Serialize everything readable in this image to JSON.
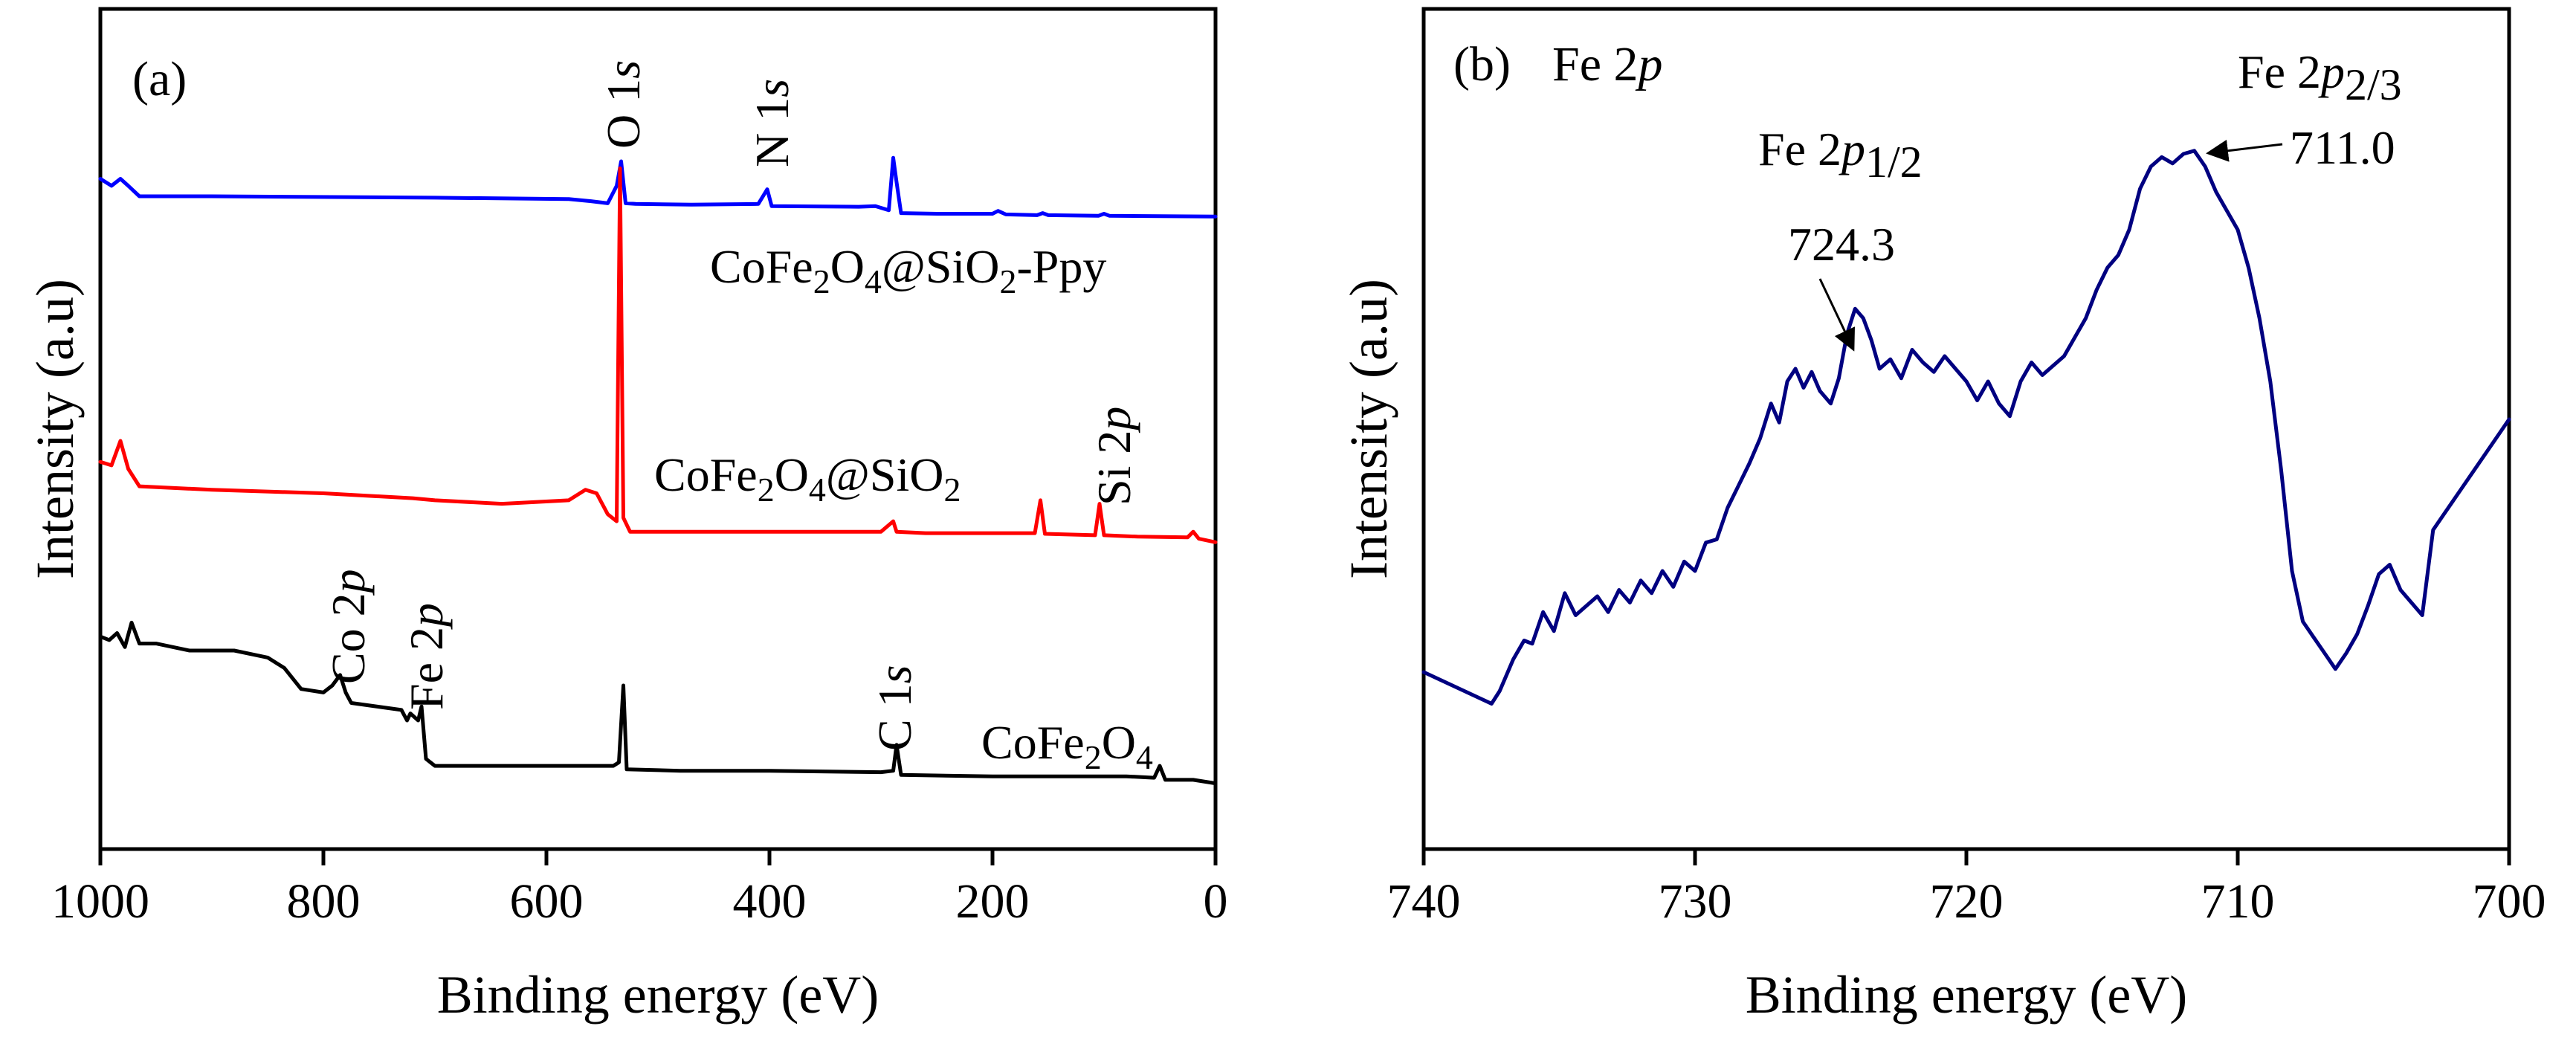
{
  "chart_data": [
    {
      "type": "line",
      "panel": "(a)",
      "title": "",
      "xlabel": "Binding energy (eV)",
      "ylabel": "Intensity (a.u)",
      "xlim": [
        1000,
        0
      ],
      "xticks": [
        1000,
        800,
        600,
        400,
        200,
        0
      ],
      "y_ticks_labeled": false,
      "y_axis_note": "stacked spectra, arbitrary units 0-100",
      "series": [
        {
          "name": "CoFe2O4@SiO2-Ppy",
          "color": "#0000ff",
          "points": [
            [
              1000,
              92.5
            ],
            [
              990,
              91.5
            ],
            [
              982,
              92.5
            ],
            [
              975,
              91.5
            ],
            [
              965,
              90.0
            ],
            [
              900,
              90.0
            ],
            [
              700,
              89.8
            ],
            [
              580,
              89.6
            ],
            [
              560,
              89.3
            ],
            [
              545,
              89.0
            ],
            [
              537,
              91.5
            ],
            [
              533,
              95.0
            ],
            [
              529,
              89.0
            ],
            [
              520,
              88.9
            ],
            [
              470,
              88.8
            ],
            [
              410,
              88.9
            ],
            [
              402,
              91.0
            ],
            [
              398,
              88.6
            ],
            [
              320,
              88.5
            ],
            [
              305,
              88.6
            ],
            [
              293,
              88.0
            ],
            [
              289,
              95.5
            ],
            [
              286,
              92.0
            ],
            [
              282,
              87.6
            ],
            [
              250,
              87.5
            ],
            [
              200,
              87.5
            ],
            [
              195,
              87.9
            ],
            [
              188,
              87.4
            ],
            [
              160,
              87.3
            ],
            [
              155,
              87.6
            ],
            [
              150,
              87.3
            ],
            [
              105,
              87.2
            ],
            [
              100,
              87.5
            ],
            [
              95,
              87.2
            ],
            [
              0,
              87.1
            ]
          ]
        },
        {
          "name": "CoFe2O4@SiO2",
          "color": "#ff0000",
          "points": [
            [
              1000,
              52.0
            ],
            [
              990,
              51.5
            ],
            [
              982,
              55.0
            ],
            [
              975,
              51.0
            ],
            [
              965,
              48.5
            ],
            [
              900,
              48.0
            ],
            [
              800,
              47.5
            ],
            [
              720,
              46.8
            ],
            [
              700,
              46.5
            ],
            [
              640,
              46.0
            ],
            [
              580,
              46.5
            ],
            [
              565,
              48.0
            ],
            [
              555,
              47.5
            ],
            [
              545,
              44.5
            ],
            [
              537,
              43.5
            ],
            [
              534,
              94.0
            ],
            [
              531,
              44.0
            ],
            [
              525,
              42.0
            ],
            [
              480,
              42.0
            ],
            [
              400,
              42.0
            ],
            [
              300,
              42.0
            ],
            [
              289,
              43.5
            ],
            [
              286,
              42.0
            ],
            [
              260,
              41.8
            ],
            [
              200,
              41.8
            ],
            [
              162,
              41.8
            ],
            [
              157,
              46.5
            ],
            [
              153,
              41.7
            ],
            [
              108,
              41.5
            ],
            [
              104,
              46.0
            ],
            [
              100,
              41.5
            ],
            [
              70,
              41.3
            ],
            [
              25,
              41.2
            ],
            [
              20,
              42.0
            ],
            [
              15,
              41.0
            ],
            [
              0,
              40.5
            ]
          ]
        },
        {
          "name": "CoFe2O4",
          "color": "#000000",
          "points": [
            [
              1000,
              27.0
            ],
            [
              992,
              26.5
            ],
            [
              985,
              27.5
            ],
            [
              978,
              25.5
            ],
            [
              972,
              29.0
            ],
            [
              965,
              26.0
            ],
            [
              950,
              26.0
            ],
            [
              920,
              25.0
            ],
            [
              880,
              25.0
            ],
            [
              850,
              24.0
            ],
            [
              835,
              22.5
            ],
            [
              820,
              19.5
            ],
            [
              800,
              19.0
            ],
            [
              792,
              20.0
            ],
            [
              785,
              21.5
            ],
            [
              780,
              19.0
            ],
            [
              775,
              17.5
            ],
            [
              730,
              16.5
            ],
            [
              725,
              15.0
            ],
            [
              722,
              16.0
            ],
            [
              715,
              15.0
            ],
            [
              712,
              17.0
            ],
            [
              708,
              9.5
            ],
            [
              700,
              8.5
            ],
            [
              560,
              8.5
            ],
            [
              540,
              8.5
            ],
            [
              535,
              9.0
            ],
            [
              531,
              20.0
            ],
            [
              528,
              8.0
            ],
            [
              480,
              7.8
            ],
            [
              400,
              7.8
            ],
            [
              300,
              7.6
            ],
            [
              289,
              7.8
            ],
            [
              286,
              11.5
            ],
            [
              282,
              7.2
            ],
            [
              200,
              7.0
            ],
            [
              80,
              7.0
            ],
            [
              55,
              6.8
            ],
            [
              50,
              8.5
            ],
            [
              45,
              6.5
            ],
            [
              20,
              6.5
            ],
            [
              0,
              6.0
            ]
          ]
        }
      ],
      "annotations": [
        {
          "label": "O 1s",
          "x": 533
        },
        {
          "label": "N 1s",
          "x": 400
        },
        {
          "label": "Si 2p",
          "x": 104
        },
        {
          "label": "Co 2p",
          "x": 780
        },
        {
          "label": "Fe 2p",
          "x": 711
        },
        {
          "label": "C 1s",
          "x": 285
        }
      ],
      "series_labels": {
        "ppy": {
          "prefix": "CoFe",
          "s1": "2",
          "mid": "O",
          "s2": "4",
          "tail": "@SiO",
          "s3": "2",
          "end": "-Ppy"
        },
        "sio2": {
          "prefix": "CoFe",
          "s1": "2",
          "mid": "O",
          "s2": "4",
          "tail": "@SiO",
          "s3": "2"
        },
        "bare": {
          "prefix": "CoFe",
          "s1": "2",
          "mid": "O",
          "s2": "4"
        }
      }
    },
    {
      "type": "line",
      "panel": "(b)",
      "title": "Fe 2p",
      "xlabel": "Binding energy (eV)",
      "ylabel": "Intensity (a.u)",
      "xlim": [
        740,
        700
      ],
      "xticks": [
        740,
        730,
        720,
        710,
        700
      ],
      "y_ticks_labeled": false,
      "series": [
        {
          "name": "Fe 2p",
          "color": "#000080",
          "points": [
            [
              740,
              16.0
            ],
            [
              737.5,
              11.0
            ],
            [
              737.2,
              13.0
            ],
            [
              736.7,
              18.0
            ],
            [
              736.3,
              21.0
            ],
            [
              736.0,
              20.5
            ],
            [
              735.6,
              25.5
            ],
            [
              735.2,
              22.5
            ],
            [
              734.8,
              28.5
            ],
            [
              734.4,
              25.0
            ],
            [
              734.0,
              26.5
            ],
            [
              733.6,
              28.0
            ],
            [
              733.2,
              25.5
            ],
            [
              732.8,
              29.0
            ],
            [
              732.4,
              27.0
            ],
            [
              732.0,
              30.5
            ],
            [
              731.6,
              28.5
            ],
            [
              731.2,
              32.0
            ],
            [
              730.8,
              29.5
            ],
            [
              730.4,
              33.5
            ],
            [
              730.0,
              32.0
            ],
            [
              729.6,
              36.5
            ],
            [
              729.2,
              37.0
            ],
            [
              728.8,
              42.0
            ],
            [
              728.4,
              45.5
            ],
            [
              728.0,
              49.0
            ],
            [
              727.6,
              53.0
            ],
            [
              727.2,
              58.5
            ],
            [
              726.9,
              55.5
            ],
            [
              726.6,
              62.0
            ],
            [
              726.3,
              64.0
            ],
            [
              726.0,
              61.0
            ],
            [
              725.7,
              63.5
            ],
            [
              725.4,
              60.5
            ],
            [
              725.0,
              58.5
            ],
            [
              724.7,
              62.5
            ],
            [
              724.4,
              69.5
            ],
            [
              724.1,
              73.5
            ],
            [
              723.8,
              72.0
            ],
            [
              723.5,
              68.5
            ],
            [
              723.2,
              64.0
            ],
            [
              722.8,
              65.5
            ],
            [
              722.4,
              62.5
            ],
            [
              722.0,
              67.0
            ],
            [
              721.6,
              65.0
            ],
            [
              721.2,
              63.5
            ],
            [
              720.8,
              66.0
            ],
            [
              720.4,
              64.0
            ],
            [
              720.0,
              62.0
            ],
            [
              719.6,
              59.0
            ],
            [
              719.2,
              62.0
            ],
            [
              718.8,
              58.5
            ],
            [
              718.4,
              56.5
            ],
            [
              718.0,
              62.0
            ],
            [
              717.6,
              65.0
            ],
            [
              717.2,
              63.0
            ],
            [
              716.8,
              64.5
            ],
            [
              716.4,
              66.0
            ],
            [
              716.0,
              69.0
            ],
            [
              715.6,
              72.0
            ],
            [
              715.2,
              76.5
            ],
            [
              714.8,
              80.0
            ],
            [
              714.4,
              82.0
            ],
            [
              714.0,
              86.0
            ],
            [
              713.6,
              92.5
            ],
            [
              713.2,
              96.0
            ],
            [
              712.8,
              97.5
            ],
            [
              712.4,
              96.5
            ],
            [
              712.0,
              98.0
            ],
            [
              711.6,
              98.5
            ],
            [
              711.2,
              96.0
            ],
            [
              710.8,
              92.0
            ],
            [
              710.4,
              89.0
            ],
            [
              710.0,
              86.0
            ],
            [
              709.6,
              80.0
            ],
            [
              709.2,
              72.0
            ],
            [
              708.8,
              62.0
            ],
            [
              708.4,
              48.0
            ],
            [
              708.0,
              32.0
            ],
            [
              707.6,
              24.0
            ],
            [
              707.2,
              21.5
            ],
            [
              706.8,
              19.0
            ],
            [
              706.4,
              16.5
            ],
            [
              706.0,
              19.0
            ],
            [
              705.6,
              22.0
            ],
            [
              705.2,
              26.5
            ],
            [
              704.8,
              31.5
            ],
            [
              704.4,
              33.0
            ],
            [
              704.0,
              29.0
            ],
            [
              703.6,
              27.0
            ],
            [
              703.2,
              25.0
            ],
            [
              702.8,
              38.5
            ],
            [
              702.4,
              41.0
            ],
            [
              701.6,
              46.0
            ],
            [
              700.8,
              51.0
            ],
            [
              700.0,
              56.0
            ]
          ]
        }
      ],
      "annotations": [
        {
          "label_main": "Fe 2p",
          "label_sub": "1/2",
          "value": "724.3",
          "x": 724.3
        },
        {
          "label_main": "Fe 2p",
          "label_sub": "2/3",
          "value": "711.0",
          "x": 711.0
        }
      ]
    }
  ],
  "panel_a": {
    "letter": "(a)",
    "peaks": {
      "o1s": {
        "main": "O 1",
        "italic": "s"
      },
      "n1s": {
        "main": "N 1",
        "italic": "s"
      },
      "si2p": {
        "main": "Si 2",
        "italic": "p"
      },
      "co2p": {
        "main": "Co 2",
        "italic": "p"
      },
      "fe2p": {
        "main": "Fe 2",
        "italic": "p"
      },
      "c1s": {
        "main": "C 1",
        "italic": "s"
      }
    }
  },
  "panel_b": {
    "letter": "(b)",
    "title_main": "Fe 2",
    "title_italic": "p",
    "peak_half": {
      "main": "Fe 2",
      "italic": "p",
      "sub": "1/2",
      "value": "724.3"
    },
    "peak_three": {
      "main": "Fe 2",
      "italic": "p",
      "sub": "2/3",
      "value": "711.0"
    }
  },
  "colors": {
    "blue": "#0000ff",
    "red": "#ff0000",
    "black": "#000000",
    "navy": "#000080"
  }
}
